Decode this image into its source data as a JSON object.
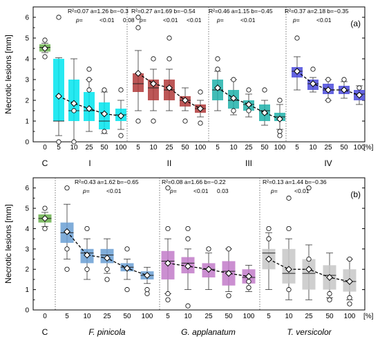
{
  "figure": {
    "ylabel": "Necrotic lesions [mm]",
    "unit_label": "[%]"
  },
  "chart_data": [
    {
      "type": "box",
      "panel": "(a)",
      "ylabel": "Necrotic lesions [mm]",
      "ylim": [
        0,
        6.5
      ],
      "yticks": [
        0,
        1,
        2,
        3,
        4,
        5,
        6
      ],
      "control": {
        "label": "C",
        "tick": "0",
        "color": "#6ab04c",
        "box": {
          "q1": 4.35,
          "median": 4.55,
          "q3": 4.7,
          "mean": 4.5,
          "wlo": 4.3,
          "whi": 4.75,
          "outliers": [
            4.1,
            4.9
          ]
        }
      },
      "groups": [
        {
          "label": "I",
          "color": "#00e5ee",
          "stats": {
            "r2": "R²=0.07",
            "a": "a=1.26",
            "b": "b=−0.3",
            "p_label": "p=",
            "p_a": "<0.01",
            "p_b": "0.08"
          },
          "boxes": [
            {
              "x": "5",
              "q1": 1.0,
              "median": 1.0,
              "q3": 4.0,
              "mean": 2.2,
              "wlo": 0.3,
              "whi": 4.05,
              "outliers": [
                6.0,
                0.0
              ]
            },
            {
              "x": "10",
              "q1": 1.0,
              "median": 1.5,
              "q3": 3.0,
              "mean": 1.85,
              "wlo": 0.0,
              "whi": 4.0,
              "outliers": [
                1.5,
                0.0
              ]
            },
            {
              "x": "25",
              "q1": 1.0,
              "median": 1.5,
              "q3": 2.4,
              "mean": 1.6,
              "wlo": 0.5,
              "whi": 3.0,
              "outliers": [
                3.5,
                3.0,
                2.5
              ]
            },
            {
              "x": "50",
              "q1": 0.6,
              "median": 1.0,
              "q3": 1.9,
              "mean": 1.35,
              "wlo": 0.4,
              "whi": 2.4,
              "outliers": [
                2.5,
                0.5
              ]
            },
            {
              "x": "100",
              "q1": 1.0,
              "median": 1.3,
              "q3": 1.6,
              "mean": 1.25,
              "wlo": 0.6,
              "whi": 2.0,
              "outliers": [
                2.5,
                0.3
              ]
            }
          ]
        },
        {
          "label": "II",
          "color": "#b03a3a",
          "stats": {
            "r2": "R²=0.27",
            "a": "a=1.69",
            "b": "b=−0.54",
            "p_label": "p=",
            "p_a": "<0.01",
            "p_b": "<0.01"
          },
          "boxes": [
            {
              "x": "5",
              "q1": 2.4,
              "median": 2.8,
              "q3": 3.3,
              "mean": 3.3,
              "wlo": 1.5,
              "whi": 4.4,
              "outliers": [
                6.0,
                5.5,
                1.0
              ]
            },
            {
              "x": "10",
              "q1": 2.0,
              "median": 2.6,
              "q3": 3.0,
              "mean": 2.8,
              "wlo": 1.5,
              "whi": 3.5,
              "outliers": [
                4.0,
                1.0
              ]
            },
            {
              "x": "25",
              "q1": 2.0,
              "median": 2.5,
              "q3": 3.0,
              "mean": 2.6,
              "wlo": 1.5,
              "whi": 3.5,
              "outliers": [
                5.0,
                4.0
              ]
            },
            {
              "x": "50",
              "q1": 1.7,
              "median": 2.0,
              "q3": 2.2,
              "mean": 2.0,
              "wlo": 1.5,
              "whi": 2.6,
              "outliers": [
                1.0
              ]
            },
            {
              "x": "100",
              "q1": 1.4,
              "median": 1.6,
              "q3": 1.8,
              "mean": 1.6,
              "wlo": 1.2,
              "whi": 2.0,
              "outliers": [
                0.9,
                2.4
              ]
            }
          ]
        },
        {
          "label": "III",
          "color": "#20b2aa",
          "stats": {
            "r2": "R²=0.46",
            "a": "a=1.15",
            "b": "b=−0.45",
            "p_label": "p=",
            "p_a": "<0.01",
            "p_b": ""
          },
          "boxes": [
            {
              "x": "5",
              "q1": 2.0,
              "median": 2.5,
              "q3": 3.0,
              "mean": 2.6,
              "wlo": 1.5,
              "whi": 3.4,
              "outliers": [
                4.0,
                3.5
              ]
            },
            {
              "x": "10",
              "q1": 1.6,
              "median": 2.0,
              "q3": 2.5,
              "mean": 2.1,
              "wlo": 1.3,
              "whi": 3.0,
              "outliers": [
                1.5,
                3.0
              ]
            },
            {
              "x": "25",
              "q1": 1.5,
              "median": 1.8,
              "q3": 2.0,
              "mean": 1.8,
              "wlo": 1.2,
              "whi": 2.3,
              "outliers": [
                2.5,
                1.5
              ]
            },
            {
              "x": "50",
              "q1": 1.0,
              "median": 1.5,
              "q3": 1.8,
              "mean": 1.4,
              "wlo": 0.8,
              "whi": 2.0,
              "outliers": [
                2.5
              ]
            },
            {
              "x": "100",
              "q1": 1.0,
              "median": 1.2,
              "q3": 1.4,
              "mean": 1.1,
              "wlo": 0.6,
              "whi": 1.8,
              "outliers": [
                2.0,
                0.5,
                0.3
              ]
            }
          ]
        },
        {
          "label": "IV",
          "color": "#4a4adb",
          "stats": {
            "r2": "R²=0.37",
            "a": "a=2.18",
            "b": "b=−0.35",
            "p_label": "p=",
            "p_a": "<0.01",
            "p_b": ""
          },
          "boxes": [
            {
              "x": "5",
              "q1": 3.1,
              "median": 3.4,
              "q3": 3.6,
              "mean": 3.4,
              "wlo": 2.5,
              "whi": 4.1,
              "outliers": [
                5.0
              ]
            },
            {
              "x": "10",
              "q1": 2.5,
              "median": 2.8,
              "q3": 3.0,
              "mean": 2.8,
              "wlo": 2.4,
              "whi": 3.1,
              "outliers": [
                3.5
              ]
            },
            {
              "x": "25",
              "q1": 2.3,
              "median": 2.5,
              "q3": 2.8,
              "mean": 2.5,
              "wlo": 2.0,
              "whi": 3.0,
              "outliers": [
                3.0,
                2.0
              ]
            },
            {
              "x": "50",
              "q1": 2.3,
              "median": 2.5,
              "q3": 2.7,
              "mean": 2.5,
              "wlo": 2.1,
              "whi": 2.9,
              "outliers": [
                3.0
              ]
            },
            {
              "x": "100",
              "q1": 2.0,
              "median": 2.3,
              "q3": 2.5,
              "mean": 2.25,
              "wlo": 1.8,
              "whi": 2.7,
              "outliers": [
                2.6
              ]
            }
          ]
        }
      ]
    },
    {
      "type": "box",
      "panel": "(b)",
      "ylabel": "Necrotic lesions [mm]",
      "ylim": [
        0,
        6.5
      ],
      "yticks": [
        0,
        1,
        2,
        3,
        4,
        5,
        6
      ],
      "control": {
        "label": "C",
        "tick": "0",
        "color": "#6ab04c",
        "box": {
          "q1": 4.3,
          "median": 4.5,
          "q3": 4.7,
          "mean": 4.5,
          "wlo": 4.1,
          "whi": 4.8,
          "outliers": [
            5.0,
            4.0
          ]
        }
      },
      "groups": [
        {
          "label": "F. pinicola",
          "color": "#6a9fd4",
          "stats": {
            "r2": "R²=0.43",
            "a": "a=1.62",
            "b": "b=−0.65",
            "p_label": "p=",
            "p_a": "<0.01",
            "p_b": ""
          },
          "boxes": [
            {
              "x": "5",
              "q1": 3.3,
              "median": 3.8,
              "q3": 4.3,
              "mean": 3.85,
              "wlo": 2.5,
              "whi": 5.2,
              "outliers": [
                6.0,
                2.0,
                3.0
              ]
            },
            {
              "x": "10",
              "q1": 2.3,
              "median": 2.8,
              "q3": 3.0,
              "mean": 2.7,
              "wlo": 1.5,
              "whi": 3.5,
              "outliers": [
                4.0,
                2.0
              ]
            },
            {
              "x": "25",
              "q1": 2.3,
              "median": 2.7,
              "q3": 3.0,
              "mean": 2.55,
              "wlo": 1.8,
              "whi": 3.5,
              "outliers": [
                1.5,
                2.0
              ]
            },
            {
              "x": "50",
              "q1": 1.9,
              "median": 2.1,
              "q3": 2.3,
              "mean": 2.05,
              "wlo": 1.5,
              "whi": 2.5,
              "outliers": [
                1.0,
                3.0
              ]
            },
            {
              "x": "100",
              "q1": 1.5,
              "median": 1.7,
              "q3": 1.9,
              "mean": 1.7,
              "wlo": 1.3,
              "whi": 2.1,
              "outliers": [
                0.8,
                1.0
              ]
            }
          ]
        },
        {
          "label": "G. applanatum",
          "color": "#c27bc9",
          "stats": {
            "r2": "R²=0.08",
            "a": "a=1.66",
            "b": "b=−0.22",
            "p_label": "p=",
            "p_a": "<0.01",
            "p_b": "0.03"
          },
          "boxes": [
            {
              "x": "5",
              "q1": 1.5,
              "median": 2.4,
              "q3": 2.9,
              "mean": 2.3,
              "wlo": 0.8,
              "whi": 3.5,
              "outliers": [
                6.0,
                0.5,
                0.8,
                4.0
              ]
            },
            {
              "x": "10",
              "q1": 1.8,
              "median": 2.3,
              "q3": 2.6,
              "mean": 2.15,
              "wlo": 1.0,
              "whi": 3.0,
              "outliers": [
                0.2,
                3.5,
                4.0
              ]
            },
            {
              "x": "25",
              "q1": 1.6,
              "median": 2.0,
              "q3": 2.3,
              "mean": 2.0,
              "wlo": 1.0,
              "whi": 2.8,
              "outliers": [
                3.0
              ]
            },
            {
              "x": "50",
              "q1": 1.2,
              "median": 1.9,
              "q3": 2.4,
              "mean": 1.8,
              "wlo": 0.9,
              "whi": 3.0,
              "outliers": [
                3.0,
                0.7
              ]
            },
            {
              "x": "100",
              "q1": 1.3,
              "median": 1.6,
              "q3": 2.0,
              "mean": 1.65,
              "wlo": 0.9,
              "whi": 2.2,
              "outliers": [
                1.1,
                1.4
              ]
            }
          ]
        },
        {
          "label": "T. versicolor",
          "color": "#c7c7c7",
          "stats": {
            "r2": "R²=0.13",
            "a": "a=1.44",
            "b": "b=−0.36",
            "p_label": "p=",
            "p_a": "<0.01",
            "p_b": ""
          },
          "boxes": [
            {
              "x": "5",
              "q1": 2.0,
              "median": 2.8,
              "q3": 3.0,
              "mean": 2.5,
              "wlo": 1.0,
              "whi": 3.8,
              "outliers": [
                4.0,
                3.5
              ]
            },
            {
              "x": "10",
              "q1": 1.3,
              "median": 1.8,
              "q3": 3.0,
              "mean": 2.0,
              "wlo": 0.5,
              "whi": 3.5,
              "outliers": [
                5.5,
                1.0,
                4.0
              ]
            },
            {
              "x": "25",
              "q1": 1.0,
              "median": 1.8,
              "q3": 2.5,
              "mean": 2.0,
              "wlo": 0.5,
              "whi": 3.2,
              "outliers": [
                6.0,
                2.5
              ]
            },
            {
              "x": "50",
              "q1": 1.0,
              "median": 1.7,
              "q3": 2.2,
              "mean": 1.6,
              "wlo": 0.6,
              "whi": 2.8,
              "outliers": [
                0.5,
                0.8
              ]
            },
            {
              "x": "100",
              "q1": 0.9,
              "median": 1.4,
              "q3": 2.0,
              "mean": 1.4,
              "wlo": 0.5,
              "whi": 2.5,
              "outliers": [
                2.5,
                0.3,
                0.6
              ]
            }
          ]
        }
      ]
    }
  ]
}
